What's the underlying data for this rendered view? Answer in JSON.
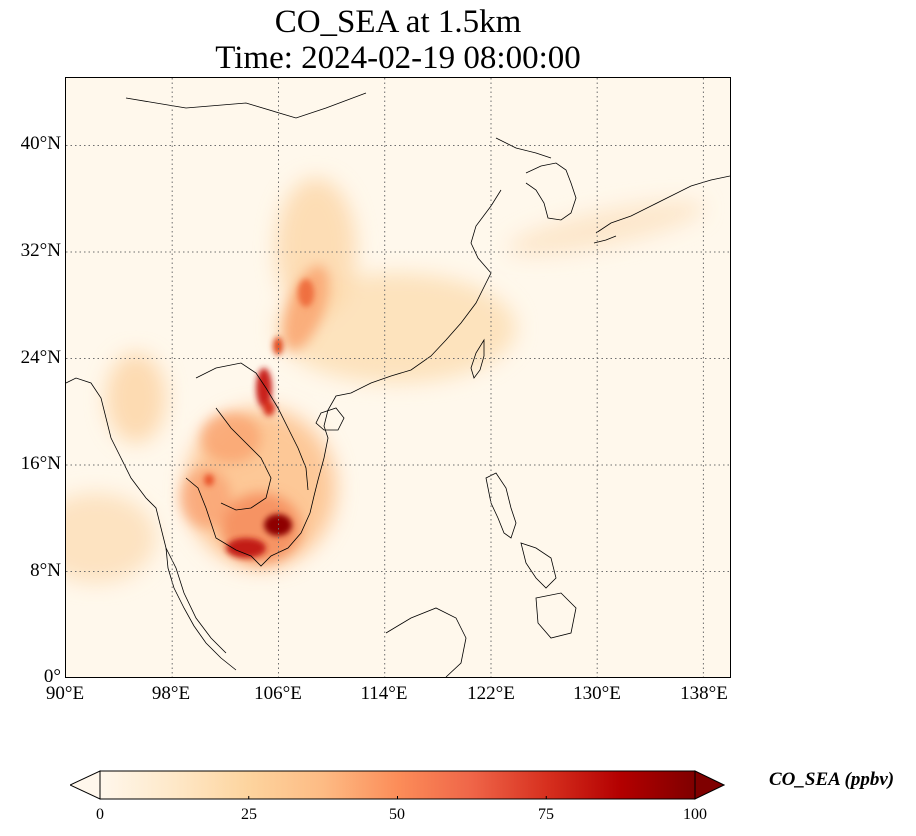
{
  "title": {
    "line1": "CO_SEA at 1.5km",
    "line2": "Time: 2024-02-19 08:00:00"
  },
  "map": {
    "lon_range": [
      90,
      140
    ],
    "lat_range": [
      0,
      45
    ],
    "lat_ticks": [
      {
        "value": 0,
        "label": "0°"
      },
      {
        "value": 8,
        "label": "8°N"
      },
      {
        "value": 16,
        "label": "16°N"
      },
      {
        "value": 24,
        "label": "24°N"
      },
      {
        "value": 32,
        "label": "32°N"
      },
      {
        "value": 40,
        "label": "40°N"
      }
    ],
    "lon_ticks": [
      {
        "value": 90,
        "label": "90°E"
      },
      {
        "value": 98,
        "label": "98°E"
      },
      {
        "value": 106,
        "label": "106°E"
      },
      {
        "value": 114,
        "label": "114°E"
      },
      {
        "value": 122,
        "label": "122°E"
      },
      {
        "value": 130,
        "label": "130°E"
      },
      {
        "value": 138,
        "label": "138°E"
      }
    ],
    "gridlines": "dotted"
  },
  "colorbar": {
    "label": "CO_SEA (ppbv)",
    "min": 0,
    "max": 100,
    "extend": "both",
    "colormap": [
      "#fff7ec",
      "#fee8c8",
      "#fdd49e",
      "#fdbb84",
      "#fc8d59",
      "#ef6548",
      "#d7301f",
      "#b30000",
      "#7f0000"
    ],
    "ticks": [
      {
        "value": 0,
        "label": "0"
      },
      {
        "value": 25,
        "label": "25"
      },
      {
        "value": 50,
        "label": "50"
      },
      {
        "value": 75,
        "label": "75"
      },
      {
        "value": 100,
        "label": "100"
      }
    ]
  }
}
